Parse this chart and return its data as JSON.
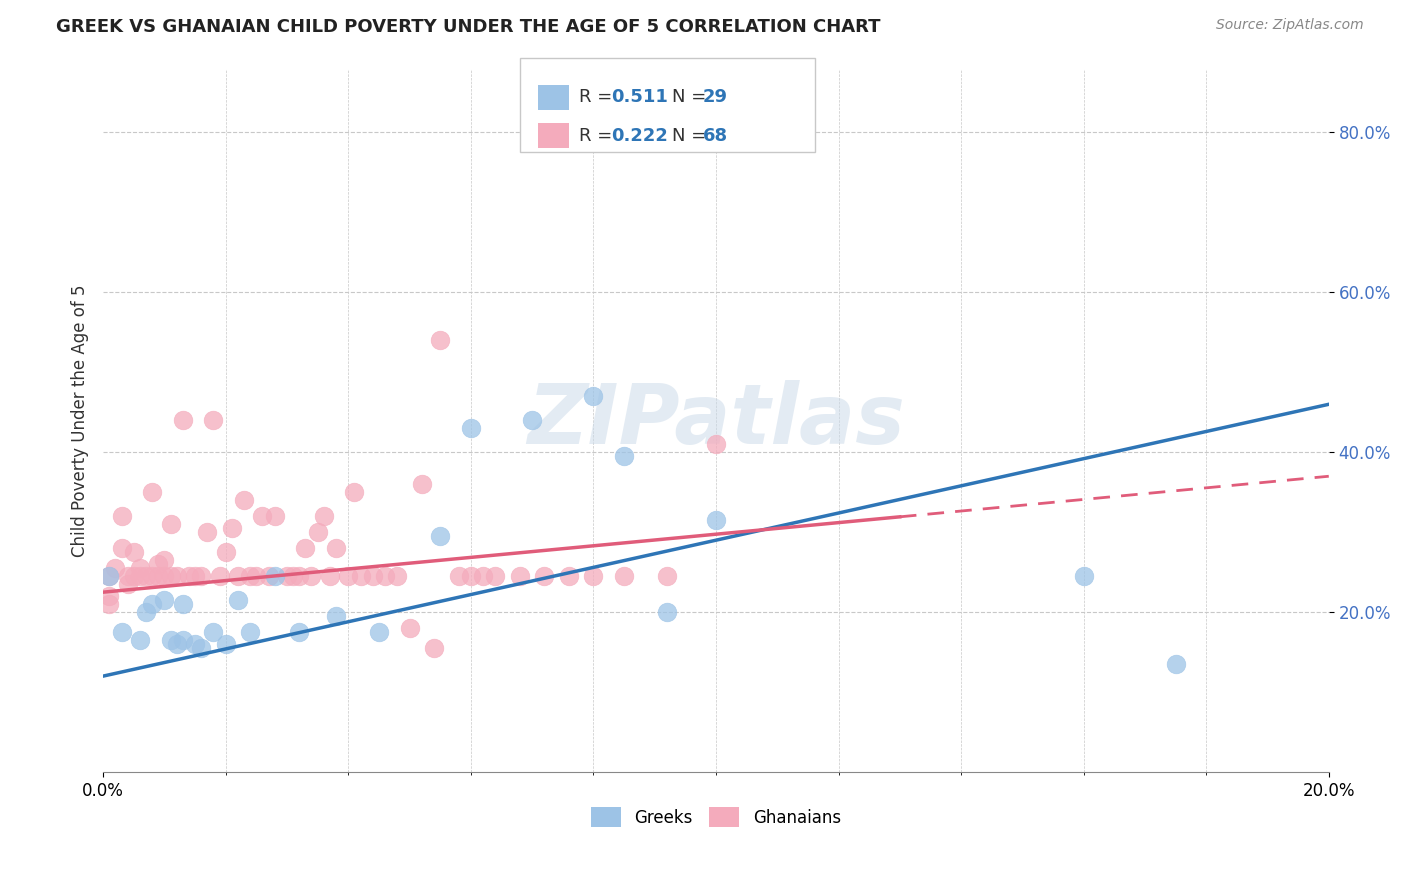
{
  "title": "GREEK VS GHANAIAN CHILD POVERTY UNDER THE AGE OF 5 CORRELATION CHART",
  "source": "Source: ZipAtlas.com",
  "ylabel": "Child Poverty Under the Age of 5",
  "xlim": [
    0.0,
    0.2
  ],
  "ylim": [
    0.0,
    0.88
  ],
  "xticks_major": [
    0.0,
    0.2
  ],
  "xticks_minor": [
    0.02,
    0.04,
    0.06,
    0.08,
    0.1,
    0.12,
    0.14,
    0.16,
    0.18
  ],
  "yticks": [
    0.2,
    0.4,
    0.6,
    0.8
  ],
  "greek_color": "#9DC3E6",
  "ghanaian_color": "#F4ABBC",
  "greek_line_color": "#2E75B6",
  "ghanaian_line_color": "#E05C7A",
  "greek_R": 0.511,
  "greek_N": 29,
  "ghanaian_R": 0.222,
  "ghanaian_N": 68,
  "legend_label_greek": "Greeks",
  "legend_label_ghanaian": "Ghanaians",
  "greeks_x": [
    0.001,
    0.003,
    0.006,
    0.007,
    0.008,
    0.01,
    0.011,
    0.012,
    0.013,
    0.013,
    0.015,
    0.016,
    0.018,
    0.02,
    0.022,
    0.024,
    0.028,
    0.032,
    0.038,
    0.045,
    0.055,
    0.06,
    0.07,
    0.08,
    0.085,
    0.092,
    0.1,
    0.16,
    0.175
  ],
  "greeks_y": [
    0.245,
    0.175,
    0.165,
    0.2,
    0.21,
    0.215,
    0.165,
    0.16,
    0.165,
    0.21,
    0.16,
    0.155,
    0.175,
    0.16,
    0.215,
    0.175,
    0.245,
    0.175,
    0.195,
    0.175,
    0.295,
    0.43,
    0.44,
    0.47,
    0.395,
    0.2,
    0.315,
    0.245,
    0.135
  ],
  "ghanaians_x": [
    0.001,
    0.001,
    0.001,
    0.002,
    0.003,
    0.003,
    0.004,
    0.004,
    0.005,
    0.005,
    0.006,
    0.006,
    0.007,
    0.008,
    0.008,
    0.009,
    0.009,
    0.01,
    0.01,
    0.011,
    0.011,
    0.012,
    0.013,
    0.014,
    0.015,
    0.016,
    0.017,
    0.018,
    0.019,
    0.02,
    0.021,
    0.022,
    0.023,
    0.024,
    0.025,
    0.026,
    0.027,
    0.028,
    0.03,
    0.031,
    0.032,
    0.033,
    0.034,
    0.035,
    0.036,
    0.037,
    0.038,
    0.04,
    0.041,
    0.042,
    0.044,
    0.046,
    0.048,
    0.05,
    0.052,
    0.054,
    0.055,
    0.058,
    0.06,
    0.062,
    0.064,
    0.068,
    0.072,
    0.076,
    0.08,
    0.085,
    0.092,
    0.1
  ],
  "ghanaians_y": [
    0.22,
    0.245,
    0.21,
    0.255,
    0.28,
    0.32,
    0.245,
    0.235,
    0.245,
    0.275,
    0.245,
    0.255,
    0.245,
    0.35,
    0.245,
    0.26,
    0.245,
    0.245,
    0.265,
    0.31,
    0.245,
    0.245,
    0.44,
    0.245,
    0.245,
    0.245,
    0.3,
    0.44,
    0.245,
    0.275,
    0.305,
    0.245,
    0.34,
    0.245,
    0.245,
    0.32,
    0.245,
    0.32,
    0.245,
    0.245,
    0.245,
    0.28,
    0.245,
    0.3,
    0.32,
    0.245,
    0.28,
    0.245,
    0.35,
    0.245,
    0.245,
    0.245,
    0.245,
    0.18,
    0.36,
    0.155,
    0.54,
    0.245,
    0.245,
    0.245,
    0.245,
    0.245,
    0.245,
    0.245,
    0.245,
    0.245,
    0.245,
    0.41
  ],
  "greek_line_x0": 0.0,
  "greek_line_y0": 0.12,
  "greek_line_x1": 0.2,
  "greek_line_y1": 0.46,
  "ghana_line_x0": 0.0,
  "ghana_line_y0": 0.225,
  "ghana_line_x1": 0.2,
  "ghana_line_y1": 0.37,
  "ghana_dash_split": 0.13,
  "watermark_text": "ZIPatlas",
  "background_color": "#FFFFFF",
  "grid_color": "#C8C8C8"
}
